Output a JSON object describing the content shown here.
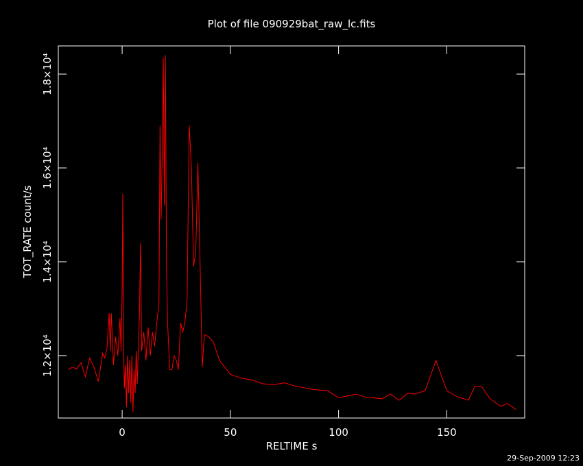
{
  "chart_data": {
    "type": "line",
    "title": "Plot of file 090929bat_raw_lc.fits",
    "x_label": "RELTIME  s",
    "y_label": "TOT_RATE  count/s",
    "timestamp": "29-Sep-2009 12:23",
    "x": [
      -25,
      -23,
      -21,
      -19,
      -17,
      -15,
      -13,
      -11,
      -9,
      -8,
      -7,
      -6,
      -5.5,
      -5,
      -4,
      -3,
      -2,
      -1,
      -0.5,
      0,
      0.3,
      0.6,
      1,
      1.5,
      2,
      2.5,
      3,
      3.5,
      4,
      4.5,
      5,
      5.5,
      6,
      6.5,
      7,
      7.5,
      8,
      8.5,
      9,
      10,
      11,
      12,
      13,
      14,
      15,
      16,
      17,
      17.5,
      18,
      18.5,
      19,
      19.5,
      20,
      20.5,
      21,
      22,
      23,
      24,
      25,
      26,
      27,
      28,
      29,
      30,
      31,
      32,
      33,
      34,
      35,
      36,
      37,
      38,
      40,
      42,
      45,
      50,
      55,
      60,
      65,
      70,
      75,
      80,
      88,
      95,
      100,
      108,
      112,
      120,
      124,
      128,
      132,
      135,
      140,
      145,
      150,
      155,
      160,
      163,
      166,
      170,
      175,
      178,
      182
    ],
    "series": [
      {
        "name": "TOT_RATE",
        "color": "#ff0000",
        "values": [
          11700,
          11750,
          11720,
          11850,
          11550,
          11950,
          11750,
          11450,
          12050,
          11950,
          12150,
          12900,
          12100,
          12900,
          11800,
          12400,
          12000,
          12800,
          12100,
          13400,
          15450,
          12500,
          11300,
          11800,
          10900,
          12000,
          11200,
          11900,
          11000,
          12000,
          10800,
          11700,
          11200,
          12100,
          11400,
          12200,
          12900,
          14400,
          12100,
          12500,
          11900,
          12600,
          12000,
          12500,
          12200,
          12700,
          13100,
          16900,
          14900,
          16200,
          18350,
          15200,
          18400,
          13900,
          12700,
          11700,
          11700,
          12000,
          11900,
          11700,
          12700,
          12500,
          12700,
          13200,
          16900,
          16000,
          13900,
          14200,
          16100,
          14000,
          11750,
          12450,
          12400,
          12300,
          11900,
          11600,
          11520,
          11480,
          11400,
          11380,
          11420,
          11350,
          11280,
          11250,
          11100,
          11180,
          11120,
          11080,
          11180,
          11050,
          11200,
          11180,
          11250,
          11900,
          11250,
          11120,
          11050,
          11350,
          11350,
          11080,
          10920,
          10980,
          10850
        ]
      }
    ],
    "xlim": [
      -29.5,
      186
    ],
    "xticks": [
      0,
      50,
      100,
      150
    ],
    "ylim": [
      10670,
      18600
    ],
    "yticks": [
      {
        "value": 12000,
        "label": "1.2×10⁴"
      },
      {
        "value": 14000,
        "label": "1.4×10⁴"
      },
      {
        "value": 16000,
        "label": "1.6×10⁴"
      },
      {
        "value": 18000,
        "label": "1.8×10⁴"
      }
    ]
  }
}
